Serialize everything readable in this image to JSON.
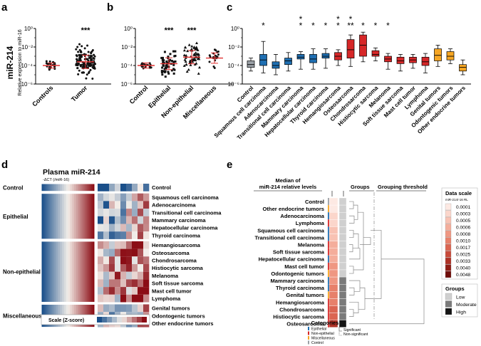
{
  "colors": {
    "dot": "#111111",
    "mean_line": "#e03030",
    "epithelial": "#1f6fb2",
    "non_epithelial": "#d62728",
    "misc": "#f6a623",
    "control": "#9aa0a6",
    "heat_low": "#1a4f8a",
    "heat_mid": "#f4efea",
    "heat_high": "#8b0d15"
  },
  "panel_a": {
    "letter": "a",
    "ylabel_main": "miR-214",
    "ylabel_sub": "Relative expression to miR-16",
    "yticks": [
      "10⁰",
      "10⁻²",
      "10⁻⁴",
      "10⁻⁶"
    ],
    "stars": "***",
    "groups": [
      {
        "label": "Controls",
        "n": 22,
        "mean_log": -4.0,
        "sd_log": 0.35
      },
      {
        "label": "Tumor",
        "n": 130,
        "mean_log": -3.6,
        "sd_log": 0.9
      }
    ]
  },
  "panel_b": {
    "letter": "b",
    "yticks": [
      "10⁰",
      "10⁻²",
      "10⁻⁴",
      "10⁻⁶"
    ],
    "groups": [
      {
        "label": "Control",
        "n": 22,
        "mean_log": -4.0,
        "sd_log": 0.35,
        "stars": ""
      },
      {
        "label": "Epithelial",
        "n": 55,
        "mean_log": -3.8,
        "sd_log": 0.8,
        "stars": "***"
      },
      {
        "label": "Non-epithelial",
        "n": 60,
        "mean_log": -3.1,
        "sd_log": 0.9,
        "stars": "***"
      },
      {
        "label": "Miscellaneous",
        "n": 20,
        "mean_log": -3.2,
        "sd_log": 0.7,
        "stars": ""
      }
    ]
  },
  "panel_c": {
    "letter": "c",
    "yticks": [
      "10⁰",
      "10⁻²",
      "10⁻⁴",
      "10⁻⁶"
    ],
    "boxes": [
      {
        "label": "Control",
        "cat": "control",
        "q1": -4.2,
        "med": -3.9,
        "q3": -3.5,
        "lo": -4.6,
        "hi": -3.2,
        "stars": ""
      },
      {
        "label": "Squamous cell carcinoma",
        "cat": "epithelial",
        "q1": -4.0,
        "med": -3.4,
        "q3": -2.8,
        "lo": -4.8,
        "hi": -1.4,
        "stars": "*"
      },
      {
        "label": "Adenocarcinoma",
        "cat": "epithelial",
        "q1": -4.3,
        "med": -4.0,
        "q3": -3.6,
        "lo": -5.0,
        "hi": -2.8,
        "stars": ""
      },
      {
        "label": "Transitional cell carcinoma",
        "cat": "epithelial",
        "q1": -3.9,
        "med": -3.5,
        "q3": -3.2,
        "lo": -4.6,
        "hi": -2.6,
        "stars": ""
      },
      {
        "label": "Mammary carcinoma",
        "cat": "epithelial",
        "q1": -3.3,
        "med": -3.1,
        "q3": -2.8,
        "lo": -4.4,
        "hi": -2.5,
        "stars": "**"
      },
      {
        "label": "Hepatocellular carcinoma",
        "cat": "epithelial",
        "q1": -3.7,
        "med": -3.3,
        "q3": -2.8,
        "lo": -4.4,
        "hi": -2.2,
        "stars": "*"
      },
      {
        "label": "Thyroid carcinoma",
        "cat": "epithelial",
        "q1": -3.2,
        "med": -3.0,
        "q3": -2.7,
        "lo": -4.3,
        "hi": -2.2,
        "stars": "*"
      },
      {
        "label": "Hemangiosarcoma",
        "cat": "non_epithelial",
        "q1": -3.4,
        "med": -3.0,
        "q3": -2.6,
        "lo": -4.0,
        "hi": -2.3,
        "stars": "**"
      },
      {
        "label": "Osteosarcoma",
        "cat": "non_epithelial",
        "q1": -3.2,
        "med": -2.3,
        "q3": -1.2,
        "lo": -4.1,
        "hi": -0.7,
        "stars": "***"
      },
      {
        "label": "Chondrosarcoma",
        "cat": "non_epithelial",
        "q1": -3.0,
        "med": -1.8,
        "q3": -0.7,
        "lo": -3.6,
        "hi": -0.4,
        "stars": "*"
      },
      {
        "label": "Histiocytic sarcoma",
        "cat": "non_epithelial",
        "q1": -3.0,
        "med": -2.8,
        "q3": -2.4,
        "lo": -3.5,
        "hi": -2.1,
        "stars": "*"
      },
      {
        "label": "Melanoma",
        "cat": "non_epithelial",
        "q1": -3.6,
        "med": -3.3,
        "q3": -3.0,
        "lo": -4.4,
        "hi": -2.7,
        "stars": "*"
      },
      {
        "label": "Soft tissue sarcoma",
        "cat": "non_epithelial",
        "q1": -3.8,
        "med": -3.5,
        "q3": -3.1,
        "lo": -4.6,
        "hi": -2.8,
        "stars": ""
      },
      {
        "label": "Mast cell tumor",
        "cat": "non_epithelial",
        "q1": -3.7,
        "med": -3.4,
        "q3": -3.1,
        "lo": -4.3,
        "hi": -2.8,
        "stars": ""
      },
      {
        "label": "Lymphoma",
        "cat": "non_epithelial",
        "q1": -4.0,
        "med": -3.6,
        "q3": -3.1,
        "lo": -4.8,
        "hi": -2.7,
        "stars": ""
      },
      {
        "label": "Genital tumors",
        "cat": "misc",
        "q1": -3.5,
        "med": -2.9,
        "q3": -2.2,
        "lo": -4.1,
        "hi": -1.8,
        "stars": ""
      },
      {
        "label": "Odontogenic tumors",
        "cat": "misc",
        "q1": -3.4,
        "med": -3.0,
        "q3": -2.5,
        "lo": -3.8,
        "hi": -2.2,
        "stars": ""
      },
      {
        "label": "Other endocrine tumors",
        "cat": "misc",
        "q1": -4.6,
        "med": -4.2,
        "q3": -3.9,
        "lo": -5.0,
        "hi": -3.4,
        "stars": ""
      }
    ]
  },
  "panel_d": {
    "letter": "d",
    "title": "Plasma miR-214",
    "subtitle": "-ΔCT (/miR-16)",
    "scale_label": "Scale (Z-score)",
    "groups": [
      {
        "label": "Control",
        "rows": 1
      },
      {
        "label": "Epithelial",
        "rows": 6
      },
      {
        "label": "Non-epithelial",
        "rows": 8
      },
      {
        "label": "Miscellaneous",
        "rows": 3
      }
    ],
    "rows": [
      "Control",
      "Squamous cell carcinoma",
      "Adenocarcinoma",
      "Transitional cell carcinoma",
      "Mammary carcinoma",
      "Hepatocellular carcinoma",
      "Thyroid carcinoma",
      "Hemangiosarcoma",
      "Osteosarcoma",
      "Chondrosarcoma",
      "Histiocytic sarcoma",
      "Melanoma",
      "Soft tissue sarcoma",
      "Mast cell tumor",
      "Lymphoma",
      "Genital tumors",
      "Odontogenic tumors",
      "Other endocrine tumors"
    ]
  },
  "panel_e": {
    "letter": "e",
    "header_median": "Median of miR-214 relative levels",
    "header_groups": "Groups",
    "header_threshold": "Grouping threshold",
    "rows": [
      {
        "label": "Control",
        "heat": 0,
        "grp": "low",
        "cat": "control"
      },
      {
        "label": "Other endocrine tumors",
        "heat": 0,
        "grp": "low",
        "cat": "misc"
      },
      {
        "label": "Adenocarcinoma",
        "heat": 1,
        "grp": "low",
        "cat": "epithelial"
      },
      {
        "label": "Lymphoma",
        "heat": 1,
        "grp": "low",
        "cat": "non_epithelial"
      },
      {
        "label": "Squamous cell carcinoma",
        "heat": 2,
        "grp": "low",
        "cat": "epithelial"
      },
      {
        "label": "Transitional cell carcinoma",
        "heat": 2,
        "grp": "low",
        "cat": "epithelial"
      },
      {
        "label": "Melanoma",
        "heat": 3,
        "grp": "low",
        "cat": "non_epithelial"
      },
      {
        "label": "Soft tissue sarcoma",
        "heat": 3,
        "grp": "low",
        "cat": "non_epithelial"
      },
      {
        "label": "Hepatocellular carcinoma",
        "heat": 3,
        "grp": "low",
        "cat": "epithelial"
      },
      {
        "label": "Mast cell tumor",
        "heat": 4,
        "grp": "low",
        "cat": "non_epithelial"
      },
      {
        "label": "Odontogenic tumors",
        "heat": 4,
        "grp": "low",
        "cat": "misc"
      },
      {
        "label": "Mammary carcinoma",
        "heat": 4,
        "grp": "moderate",
        "cat": "epithelial"
      },
      {
        "label": "Thyroid carcinoma",
        "heat": 5,
        "grp": "moderate",
        "cat": "epithelial"
      },
      {
        "label": "Genital tumors",
        "heat": 5,
        "grp": "moderate",
        "cat": "misc"
      },
      {
        "label": "Hemangiosarcoma",
        "heat": 5,
        "grp": "moderate",
        "cat": "non_epithelial"
      },
      {
        "label": "Chondrosarcoma",
        "heat": 6,
        "grp": "moderate",
        "cat": "non_epithelial"
      },
      {
        "label": "Histiocytic sarcoma",
        "heat": 6,
        "grp": "moderate",
        "cat": "non_epithelial"
      },
      {
        "label": "Osteosarcoma",
        "heat": 8,
        "grp": "high",
        "cat": "non_epithelial"
      }
    ],
    "data_scale": {
      "title": "Data scale",
      "subtitle": "miR-214/-16 RL",
      "values": [
        "0.0001",
        "0.0003",
        "0.0005",
        "0.0006",
        "0.0008",
        "0.0010",
        "0.0017",
        "0.0025",
        "0.0033",
        "0.0040",
        "0.0048"
      ],
      "colors": [
        "#fde9e3",
        "#fbd6cb",
        "#f8c2b3",
        "#f4ad9b",
        "#ef9782",
        "#e7806a",
        "#db6551",
        "#c84a3a",
        "#ae3125",
        "#8f1c14",
        "#6e0c08"
      ]
    },
    "groups_legend": {
      "title": "Groups",
      "items": [
        {
          "label": "Low",
          "color": "#cfcfcf"
        },
        {
          "label": "Moderate",
          "color": "#7a7a7a"
        },
        {
          "label": "High",
          "color": "#141414"
        }
      ]
    },
    "categories": {
      "title": "Categories",
      "items": [
        {
          "label": "Epithelial",
          "key": "epithelial"
        },
        {
          "label": "Non-epithelial",
          "key": "non_epithelial"
        },
        {
          "label": "Miscellaneous",
          "key": "misc"
        },
        {
          "label": "Control",
          "key": "control"
        }
      ],
      "sig_label": "Significant",
      "nonsig_label": "Non-significant"
    }
  }
}
